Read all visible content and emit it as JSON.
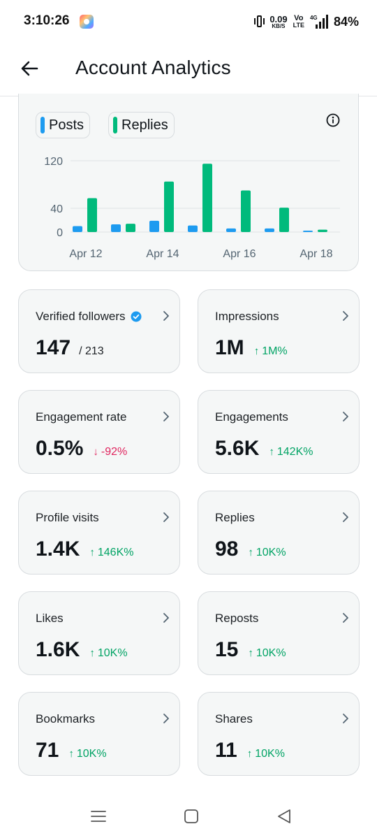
{
  "status_bar": {
    "time": "3:10:26",
    "app_icon": "photos-app-icon",
    "net_speed_value": "0.09",
    "net_speed_unit": "KB/S",
    "volte_top": "Vo",
    "volte_bottom": "LTE",
    "network_type": "4G",
    "battery": "84%"
  },
  "header": {
    "back_icon": "arrow-left-icon",
    "title": "Account Analytics"
  },
  "chart_data": {
    "type": "bar",
    "categories": [
      "Apr 12",
      "Apr 13",
      "Apr 14",
      "Apr 15",
      "Apr 16",
      "Apr 17",
      "Apr 18"
    ],
    "x_tick_labels": [
      "Apr 12",
      "Apr 14",
      "Apr 16",
      "Apr 18"
    ],
    "y_ticks": [
      0,
      40,
      120
    ],
    "ylim": [
      0,
      120
    ],
    "grid": true,
    "legend_placement": "top-left",
    "series": [
      {
        "name": "Posts",
        "color": "#1d9bf0",
        "values": [
          10,
          13,
          19,
          11,
          6,
          6,
          0
        ]
      },
      {
        "name": "Replies",
        "color": "#00ba7c",
        "values": [
          57,
          14,
          85,
          115,
          70,
          41,
          4
        ]
      }
    ]
  },
  "metrics": [
    {
      "label": "Verified followers",
      "value": "147",
      "sub": "/ 213",
      "verified": true
    },
    {
      "label": "Impressions",
      "value": "1M",
      "change": "1M%",
      "direction": "up"
    },
    {
      "label": "Engagement rate",
      "value": "0.5%",
      "change": "-92%",
      "direction": "down"
    },
    {
      "label": "Engagements",
      "value": "5.6K",
      "change": "142K%",
      "direction": "up"
    },
    {
      "label": "Profile visits",
      "value": "1.4K",
      "change": "146K%",
      "direction": "up"
    },
    {
      "label": "Replies",
      "value": "98",
      "change": "10K%",
      "direction": "up"
    },
    {
      "label": "Likes",
      "value": "1.6K",
      "change": "10K%",
      "direction": "up"
    },
    {
      "label": "Reposts",
      "value": "15",
      "change": "10K%",
      "direction": "up"
    },
    {
      "label": "Bookmarks",
      "value": "71",
      "change": "10K%",
      "direction": "up"
    },
    {
      "label": "Shares",
      "value": "11",
      "change": "10K%",
      "direction": "up"
    }
  ],
  "arrows": {
    "up": "↑",
    "down": "↓"
  },
  "colors": {
    "up": "#00a364",
    "down": "#e0245e",
    "card_bg": "#f5f7f7",
    "card_border": "#d8dcdf"
  },
  "nav_bar": {
    "icons": [
      "menu-icon",
      "home-square-icon",
      "back-triangle-icon"
    ]
  }
}
